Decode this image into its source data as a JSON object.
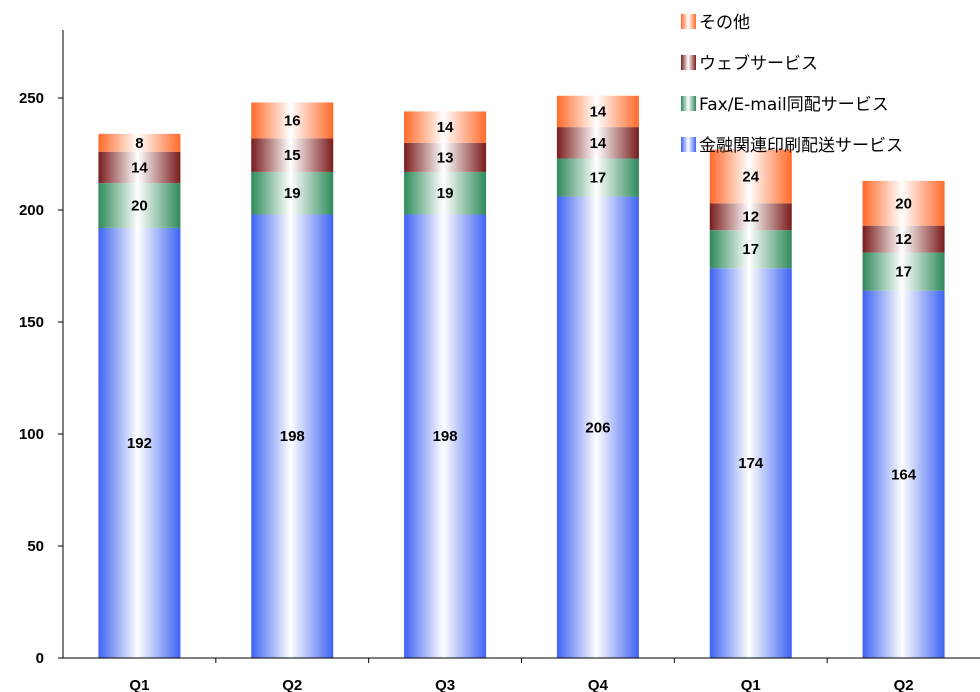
{
  "chart_data": {
    "type": "bar",
    "stacked": true,
    "categories": [
      "Q1",
      "Q2",
      "Q3",
      "Q4",
      "Q1",
      "Q2"
    ],
    "series": [
      {
        "name": "金融関連印刷配送サービス",
        "values": [
          192,
          198,
          198,
          206,
          174,
          164
        ],
        "color": "#3f63f3"
      },
      {
        "name": "Fax/E-mail同配サービス",
        "values": [
          20,
          19,
          19,
          17,
          17,
          17
        ],
        "color": "#2e8a5a"
      },
      {
        "name": "ウェブサービス",
        "values": [
          14,
          15,
          13,
          14,
          12,
          12
        ],
        "color": "#7a1c1c"
      },
      {
        "name": "その他",
        "values": [
          8,
          16,
          14,
          14,
          24,
          20
        ],
        "color": "#ff6a2a"
      }
    ],
    "y_ticks": [
      0,
      50,
      100,
      150,
      200,
      250
    ],
    "ylim": [
      0,
      280
    ],
    "title": "",
    "xlabel": "",
    "ylabel": "",
    "legend_position": "top-right",
    "grid": false
  }
}
